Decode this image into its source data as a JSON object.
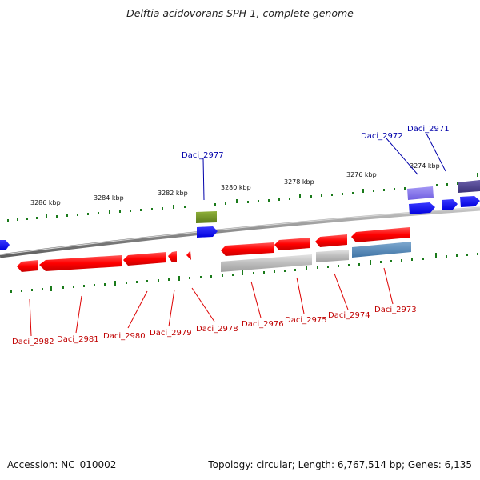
{
  "title": "Delftia acidovorans SPH-1, complete genome",
  "footer": {
    "accession": "Accession: NC_010002",
    "topology": "Topology: circular; Length: 6,767,514 bp; Genes: 6,135"
  },
  "scale_labels": [
    "3286 kbp",
    "3284 kbp",
    "3282 kbp",
    "3280 kbp",
    "3278 kbp",
    "3276 kbp",
    "3274 kbp"
  ],
  "gene_labels_top": [
    "Daci_2977",
    "Daci_2972",
    "Daci_2971"
  ],
  "gene_labels_bottom": [
    "Daci_2982",
    "Daci_2981",
    "Daci_2980",
    "Daci_2979",
    "Daci_2978",
    "Daci_2976",
    "Daci_2975",
    "Daci_2974",
    "Daci_2973"
  ],
  "colors": {
    "reverse_strand_gene": "#ff0000",
    "forward_strand_gene": "#0000ff",
    "backbone": "#888888",
    "tick": "#1a7a1a",
    "gray_feature": "#bbbbbb",
    "steelblue_feature": "#4682b4",
    "olive_feature": "#6b8e23",
    "purple_feature": "#7b68ee",
    "darkslate_feature": "#483d8b"
  }
}
